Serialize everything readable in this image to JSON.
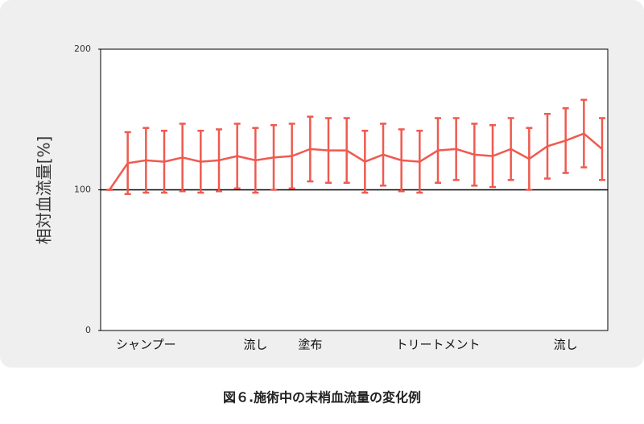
{
  "chart_data": {
    "type": "line",
    "y_label": "相対血流量[%]",
    "caption": "図６.施術中の末梢血流量の変化例",
    "categories": [
      null,
      null,
      "シャンプー",
      null,
      null,
      null,
      null,
      null,
      "流し",
      null,
      null,
      "塗布",
      null,
      null,
      null,
      null,
      null,
      null,
      "トリートメント",
      null,
      null,
      null,
      null,
      null,
      null,
      "流し",
      null,
      null
    ],
    "series": [
      {
        "color": "#ef5a50",
        "values": [
          100,
          119,
          121,
          120,
          123,
          120,
          121,
          124,
          121,
          123,
          124,
          129,
          128,
          128,
          120,
          125,
          121,
          120,
          128,
          129,
          125,
          124,
          129,
          122,
          131,
          135,
          140,
          129
        ],
        "errors": [
          0,
          22,
          23,
          22,
          24,
          22,
          22,
          23,
          23,
          23,
          23,
          23,
          23,
          23,
          22,
          22,
          22,
          22,
          23,
          22,
          22,
          22,
          22,
          22,
          23,
          23,
          24,
          22
        ]
      }
    ],
    "ylim": [
      0,
      200
    ],
    "yticks": [
      0,
      100,
      200
    ],
    "reference_line": 100
  }
}
